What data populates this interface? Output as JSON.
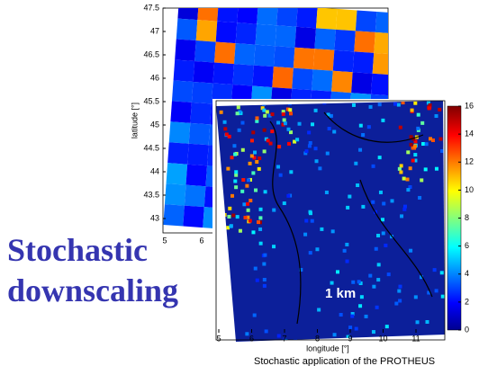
{
  "title": [
    "Stochastic",
    "downscaling"
  ],
  "back_map": {
    "y_label": "latitude [°]",
    "yticks": [
      47.5,
      47,
      46.5,
      46,
      45.5,
      45,
      44.5,
      44,
      43.5,
      43
    ],
    "xticks": [
      5,
      6
    ]
  },
  "front_map": {
    "x_label": "longitude [°]",
    "xticks": [
      5,
      6,
      7,
      8,
      9,
      10,
      11
    ],
    "annotation": "1 km"
  },
  "colorbar": {
    "ticks": [
      16,
      14,
      12,
      10,
      8,
      6,
      4,
      2,
      0
    ]
  },
  "caption": "Stochastic application of the PROTHEUS"
}
